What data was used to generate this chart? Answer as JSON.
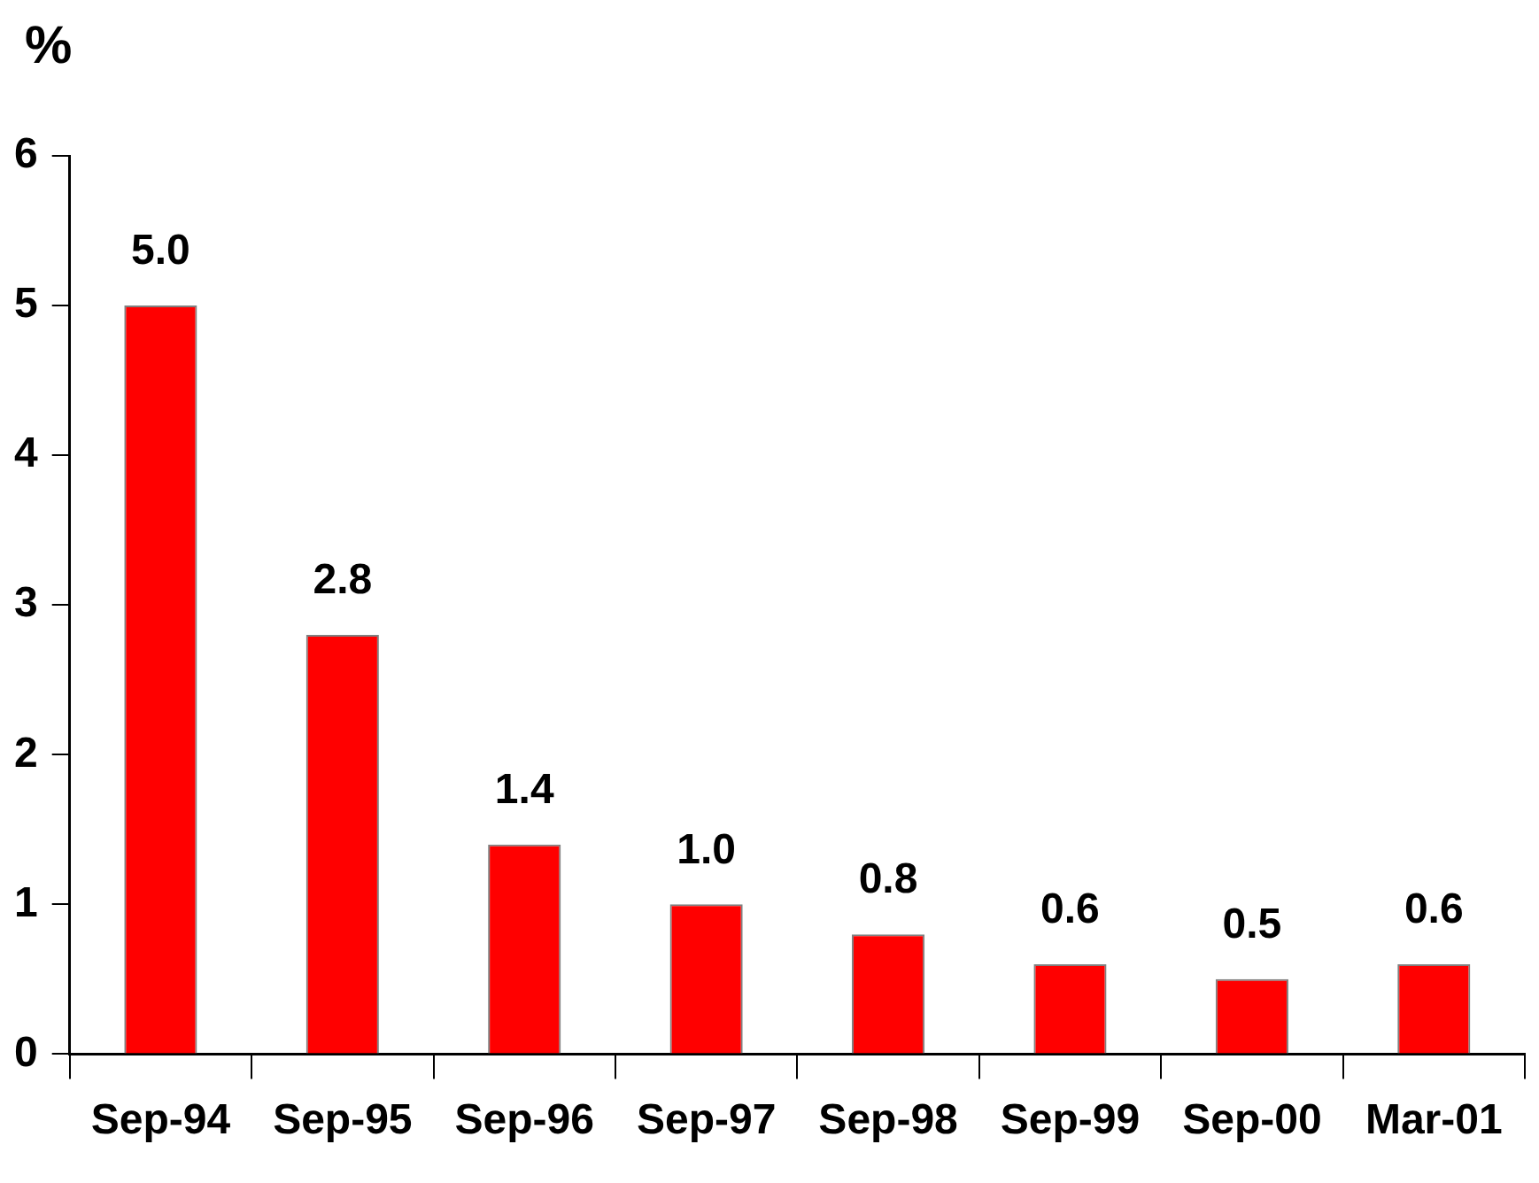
{
  "chart_data": {
    "type": "bar",
    "ylabel": "%",
    "categories": [
      "Sep-94",
      "Sep-95",
      "Sep-96",
      "Sep-97",
      "Sep-98",
      "Sep-99",
      "Sep-00",
      "Mar-01"
    ],
    "values": [
      5.0,
      2.8,
      1.4,
      1.0,
      0.8,
      0.6,
      0.5,
      0.6
    ],
    "value_labels": [
      "5.0",
      "2.8",
      "1.4",
      "1.0",
      "0.8",
      "0.6",
      "0.5",
      "0.6"
    ],
    "color": "#ff0000",
    "ylim": [
      0,
      6
    ],
    "yticks": [
      0,
      1,
      2,
      3,
      4,
      5,
      6
    ],
    "grid": false,
    "legend": false
  }
}
